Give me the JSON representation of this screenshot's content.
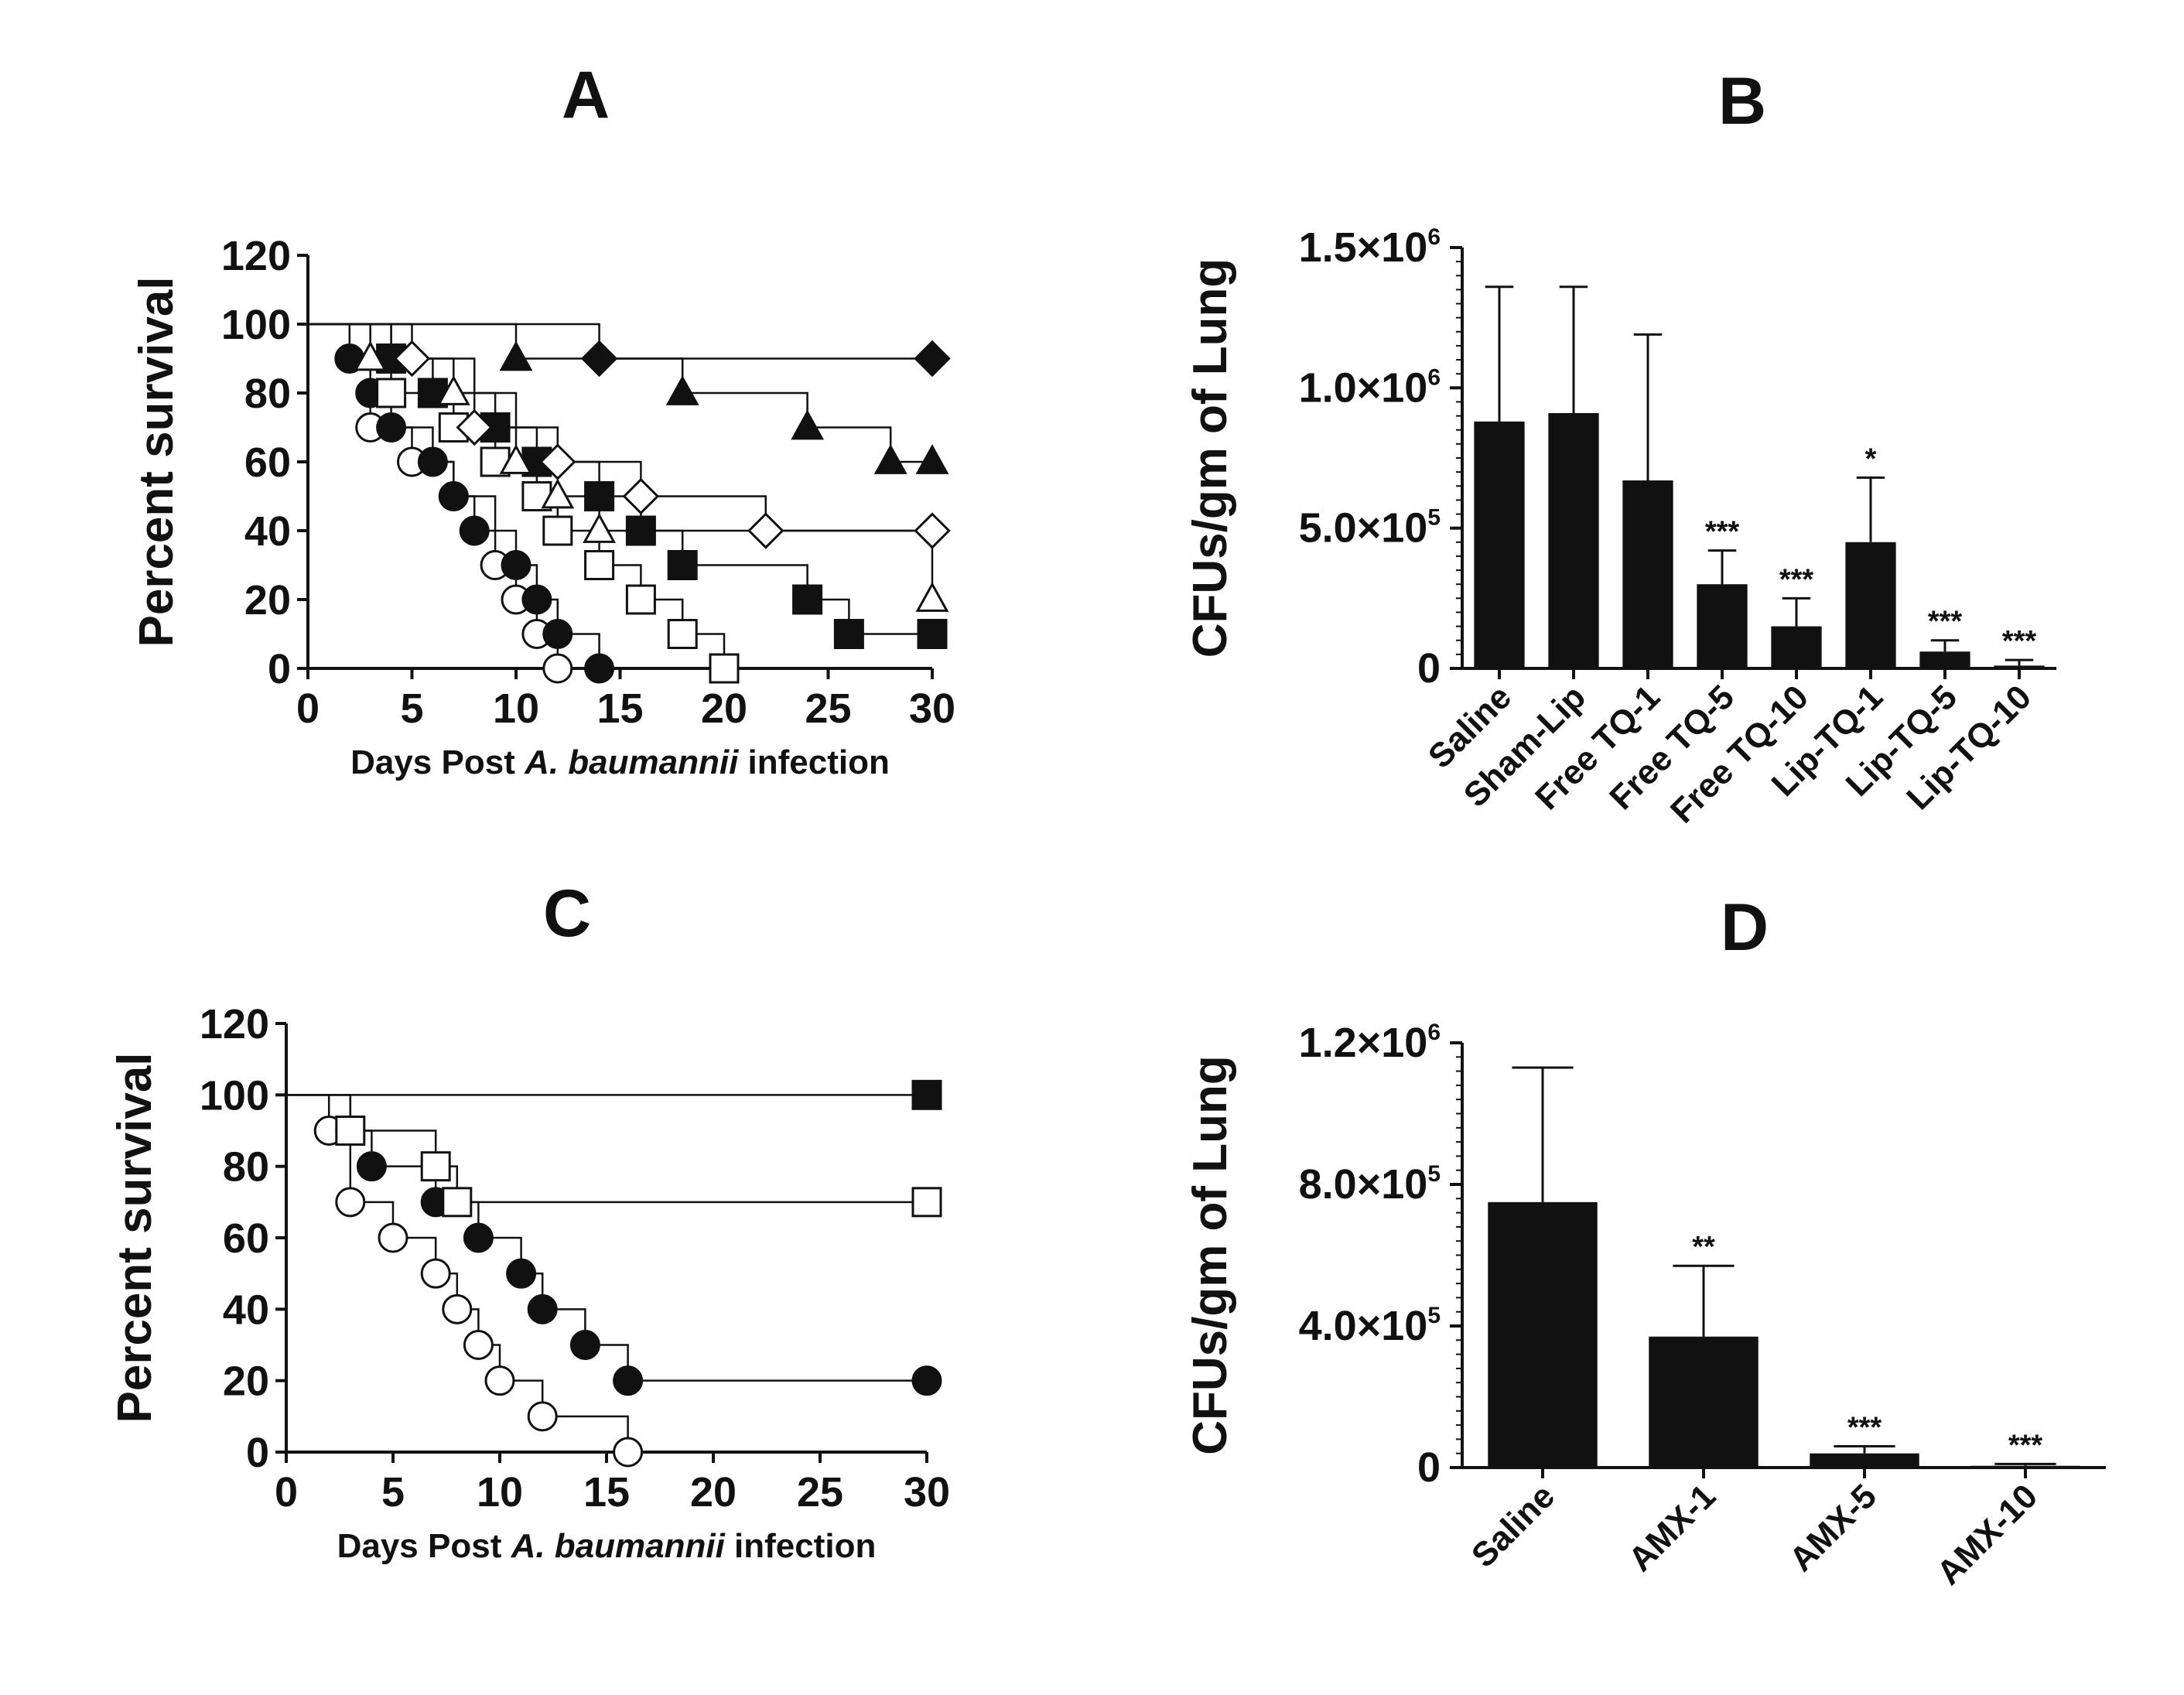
{
  "chart_data": [
    {
      "panel": "A",
      "type": "line",
      "step": true,
      "xlabel_parts": [
        "Days Post ",
        "A. baumannii",
        " infection"
      ],
      "ylabel": "Percent survival",
      "xlim": [
        0,
        30
      ],
      "ylim": [
        0,
        120
      ],
      "xticks": [
        0,
        5,
        10,
        15,
        20,
        25,
        30
      ],
      "yticks": [
        0,
        20,
        40,
        60,
        80,
        100,
        120
      ],
      "series": [
        {
          "marker": "circle-open",
          "x": [
            0,
            3,
            5,
            7,
            9,
            10,
            11,
            12
          ],
          "y": [
            100,
            70,
            60,
            50,
            30,
            20,
            10,
            0
          ]
        },
        {
          "marker": "circle-filled",
          "x": [
            0,
            2,
            3,
            4,
            6,
            7,
            8,
            10,
            11,
            12,
            14
          ],
          "y": [
            100,
            90,
            80,
            70,
            60,
            50,
            40,
            30,
            20,
            10,
            0
          ]
        },
        {
          "marker": "square-open",
          "x": [
            0,
            4,
            7,
            9,
            11,
            12,
            14,
            16,
            18,
            20
          ],
          "y": [
            100,
            80,
            70,
            60,
            50,
            40,
            30,
            20,
            10,
            0
          ]
        },
        {
          "marker": "square-filled",
          "x": [
            0,
            4,
            6,
            9,
            11,
            14,
            16,
            18,
            24,
            26,
            30
          ],
          "y": [
            100,
            90,
            80,
            70,
            60,
            50,
            40,
            30,
            20,
            10,
            10
          ]
        },
        {
          "marker": "triangle-open",
          "x": [
            0,
            3,
            7,
            10,
            12,
            14,
            30
          ],
          "y": [
            100,
            90,
            80,
            60,
            50,
            40,
            20
          ]
        },
        {
          "marker": "diamond-open",
          "x": [
            0,
            5,
            8,
            12,
            16,
            22,
            30
          ],
          "y": [
            100,
            90,
            70,
            60,
            50,
            40,
            40
          ]
        },
        {
          "marker": "triangle-filled",
          "x": [
            0,
            10,
            18,
            24,
            28,
            30
          ],
          "y": [
            100,
            90,
            80,
            70,
            60,
            60
          ]
        },
        {
          "marker": "diamond-filled",
          "x": [
            0,
            14,
            30
          ],
          "y": [
            100,
            90,
            90
          ]
        }
      ]
    },
    {
      "panel": "B",
      "type": "bar",
      "ylabel": "CFUs/gm of Lung",
      "ylim": [
        0,
        1500000
      ],
      "ytick_values": [
        0,
        500000,
        1000000,
        1500000
      ],
      "yticks": [
        {
          "value": 0,
          "mant": "0",
          "exp": ""
        },
        {
          "value": 500000,
          "mant": "5.0×10",
          "exp": "5"
        },
        {
          "value": 1000000,
          "mant": "1.0×10",
          "exp": "6"
        },
        {
          "value": 1500000,
          "mant": "1.5×10",
          "exp": "6"
        }
      ],
      "categories": [
        "Saline",
        "Sham-Lip",
        "Free TQ-1",
        "Free TQ-5",
        "Free TQ-10",
        "Lip-TQ-1",
        "Lip-TQ-5",
        "Lip-TQ-10"
      ],
      "values": [
        880000,
        910000,
        670000,
        300000,
        150000,
        450000,
        60000,
        10000
      ],
      "error": [
        480000,
        450000,
        520000,
        120000,
        100000,
        230000,
        40000,
        20000
      ],
      "significance": [
        "",
        "",
        "",
        "***",
        "***",
        "*",
        "***",
        "***"
      ]
    },
    {
      "panel": "C",
      "type": "line",
      "step": true,
      "xlabel_parts": [
        "Days Post ",
        "A. baumannii",
        " infection"
      ],
      "ylabel": "Percent survival",
      "xlim": [
        0,
        30
      ],
      "ylim": [
        0,
        120
      ],
      "xticks": [
        0,
        5,
        10,
        15,
        20,
        25,
        30
      ],
      "yticks": [
        0,
        20,
        40,
        60,
        80,
        100,
        120
      ],
      "series": [
        {
          "marker": "circle-open",
          "x": [
            0,
            2,
            3,
            5,
            7,
            8,
            9,
            10,
            12,
            16
          ],
          "y": [
            100,
            90,
            70,
            60,
            50,
            40,
            30,
            20,
            10,
            0
          ]
        },
        {
          "marker": "circle-filled",
          "x": [
            0,
            3,
            4,
            7,
            9,
            11,
            12,
            14,
            16,
            30
          ],
          "y": [
            100,
            90,
            80,
            70,
            60,
            50,
            40,
            30,
            20,
            20
          ]
        },
        {
          "marker": "square-open",
          "x": [
            0,
            3,
            7,
            8,
            30
          ],
          "y": [
            100,
            90,
            80,
            70,
            70
          ]
        },
        {
          "marker": "square-filled",
          "x": [
            0,
            30
          ],
          "y": [
            100,
            100
          ]
        }
      ]
    },
    {
      "panel": "D",
      "type": "bar",
      "ylabel": "CFUs/gm of Lung",
      "ylim": [
        0,
        1200000
      ],
      "ytick_values": [
        0,
        400000,
        800000,
        1200000
      ],
      "yticks": [
        {
          "value": 0,
          "mant": "0",
          "exp": ""
        },
        {
          "value": 400000,
          "mant": "4.0×10",
          "exp": "5"
        },
        {
          "value": 800000,
          "mant": "8.0×10",
          "exp": "5"
        },
        {
          "value": 1200000,
          "mant": "1.2×10",
          "exp": "6"
        }
      ],
      "categories": [
        "Saline",
        "AMX-1",
        "AMX-5",
        "AMX-10"
      ],
      "values": [
        750000,
        370000,
        40000,
        5000
      ],
      "error": [
        380000,
        200000,
        20000,
        5000
      ],
      "significance": [
        "",
        "**",
        "***",
        "***"
      ]
    }
  ]
}
